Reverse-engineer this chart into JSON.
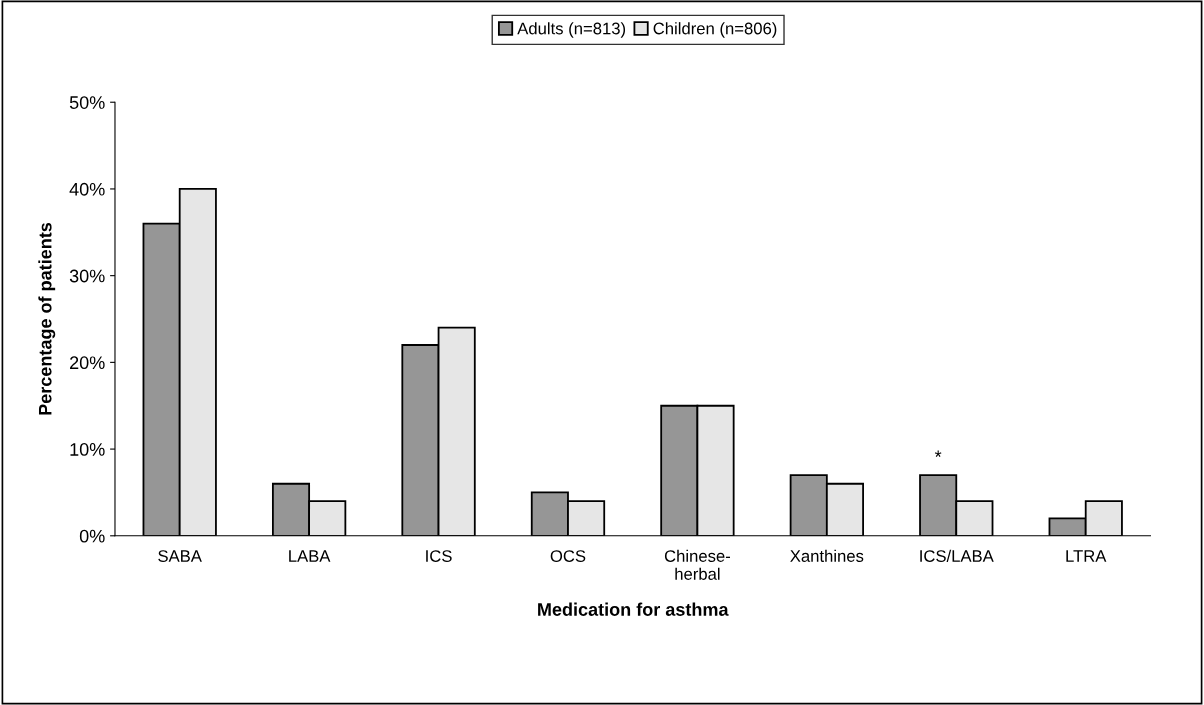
{
  "chart_data": {
    "type": "bar",
    "xlabel": "Medication for asthma",
    "ylabel": "Percentage of patients",
    "categories": [
      "SABA",
      "LABA",
      "ICS",
      "OCS",
      "Chinese-\nherbal",
      "Xanthines",
      "ICS/LABA",
      "LTRA"
    ],
    "series": [
      {
        "name": "Adults (n=813)",
        "color": "#969696",
        "values": [
          36,
          6,
          22,
          5,
          15,
          7,
          7,
          2
        ]
      },
      {
        "name": "Children (n=806)",
        "color": "#e6e6e6",
        "values": [
          40,
          4,
          24,
          4,
          15,
          6,
          4,
          4
        ]
      }
    ],
    "ylim": [
      0,
      50
    ],
    "yticks": [
      {
        "value": 0,
        "label": "0%"
      },
      {
        "value": 10,
        "label": "10%"
      },
      {
        "value": 20,
        "label": "20%"
      },
      {
        "value": 30,
        "label": "30%"
      },
      {
        "value": 40,
        "label": "40%"
      },
      {
        "value": 50,
        "label": "50%"
      }
    ],
    "annotations": [
      {
        "text": "*",
        "x": "ICS/LABA",
        "y": 7
      }
    ],
    "legend": "top",
    "grid": false
  }
}
